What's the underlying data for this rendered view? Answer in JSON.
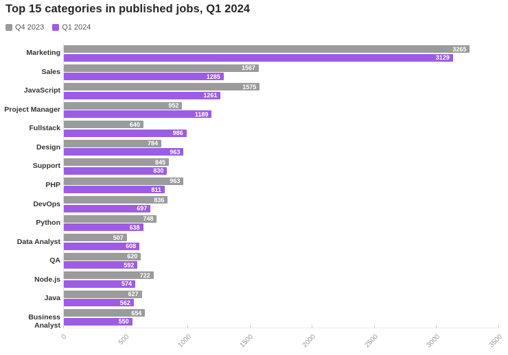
{
  "title": "Top 15 categories in published jobs, Q1 2024",
  "legend": {
    "items": [
      {
        "label": "Q4 2023",
        "color": "#9b9b9b"
      },
      {
        "label": "Q1 2024",
        "color": "#9d5ce5"
      }
    ]
  },
  "colors": {
    "q4_2023": "#9b9b9b",
    "q1_2024": "#9d5ce5",
    "value_text": "#ffffff",
    "axis_text": "#999999",
    "category_text": "#333333",
    "title_text": "#262626"
  },
  "chart_data": {
    "type": "bar",
    "orientation": "horizontal",
    "title": "Top 15 categories in published jobs, Q1 2024",
    "categories": [
      "Marketing",
      "Sales",
      "JavaScript",
      "Project Manager",
      "Fullstack",
      "Design",
      "Support",
      "PHP",
      "DevOps",
      "Python",
      "Data Analyst",
      "QA",
      "Node.js",
      "Java",
      "Business Analyst"
    ],
    "series": [
      {
        "name": "Q4 2023",
        "color": "#9b9b9b",
        "values": [
          3265,
          1567,
          1575,
          952,
          640,
          784,
          845,
          963,
          836,
          748,
          507,
          620,
          722,
          627,
          654
        ]
      },
      {
        "name": "Q1 2024",
        "color": "#9d5ce5",
        "values": [
          3129,
          1285,
          1261,
          1189,
          986,
          963,
          830,
          811,
          697,
          638,
          608,
          592,
          574,
          562,
          550
        ]
      }
    ],
    "xlim": [
      0,
      3500
    ],
    "xtick_labels": [
      "0",
      "500",
      "1000",
      "1500",
      "2000",
      "2500",
      "3000",
      "3500"
    ],
    "xticks": [
      0,
      500,
      1000,
      1500,
      2000,
      2500,
      3000,
      3500
    ],
    "value_labels": true,
    "grid": false,
    "legend_position": "top-left"
  }
}
